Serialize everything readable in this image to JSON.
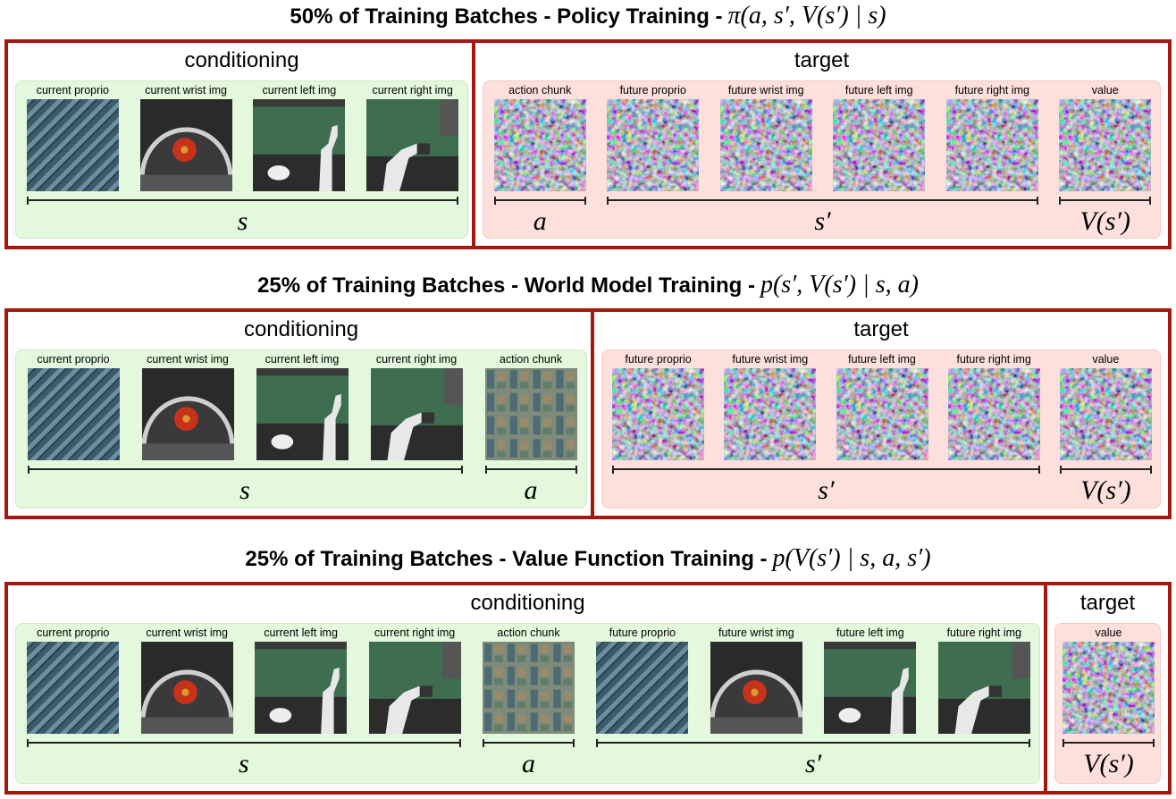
{
  "panels": [
    {
      "title": "50% of Training Batches - Policy Training -",
      "formula": "π(a, s′, V(s′) | s)",
      "sections": [
        {
          "label": "conditioning",
          "groups": [
            {
              "symbol": "s",
              "items": [
                "current proprio",
                "current wrist img",
                "current left img",
                "current right img"
              ]
            }
          ]
        },
        {
          "label": "target",
          "groups": [
            {
              "symbol": "a",
              "items": [
                "action chunk"
              ]
            },
            {
              "symbol": "s′",
              "items": [
                "future proprio",
                "future wrist img",
                "future left img",
                "future right img"
              ]
            },
            {
              "symbol": "V(s′)",
              "items": [
                "value"
              ]
            }
          ]
        }
      ]
    },
    {
      "title": "25% of Training Batches - World Model Training -",
      "formula": "p(s′, V(s′) | s, a)",
      "sections": [
        {
          "label": "conditioning",
          "groups": [
            {
              "symbol": "s",
              "items": [
                "current proprio",
                "current wrist img",
                "current left img",
                "current right img"
              ]
            },
            {
              "symbol": "a",
              "items": [
                "action chunk"
              ]
            }
          ]
        },
        {
          "label": "target",
          "groups": [
            {
              "symbol": "s′",
              "items": [
                "future proprio",
                "future wrist img",
                "future left img",
                "future right img"
              ]
            },
            {
              "symbol": "V(s′)",
              "items": [
                "value"
              ]
            }
          ]
        }
      ]
    },
    {
      "title": "25% of Training Batches - Value Function Training -",
      "formula": "p(V(s′) | s, a, s′)",
      "sections": [
        {
          "label": "conditioning",
          "groups": [
            {
              "symbol": "s",
              "items": [
                "current proprio",
                "current wrist img",
                "current left img",
                "current right img"
              ]
            },
            {
              "symbol": "a",
              "items": [
                "action chunk"
              ]
            },
            {
              "symbol": "s′",
              "items": [
                "future proprio",
                "future wrist img",
                "future left img",
                "future right img"
              ]
            }
          ]
        },
        {
          "label": "target",
          "groups": [
            {
              "symbol": "V(s′)",
              "items": [
                "value"
              ]
            }
          ]
        }
      ]
    }
  ]
}
